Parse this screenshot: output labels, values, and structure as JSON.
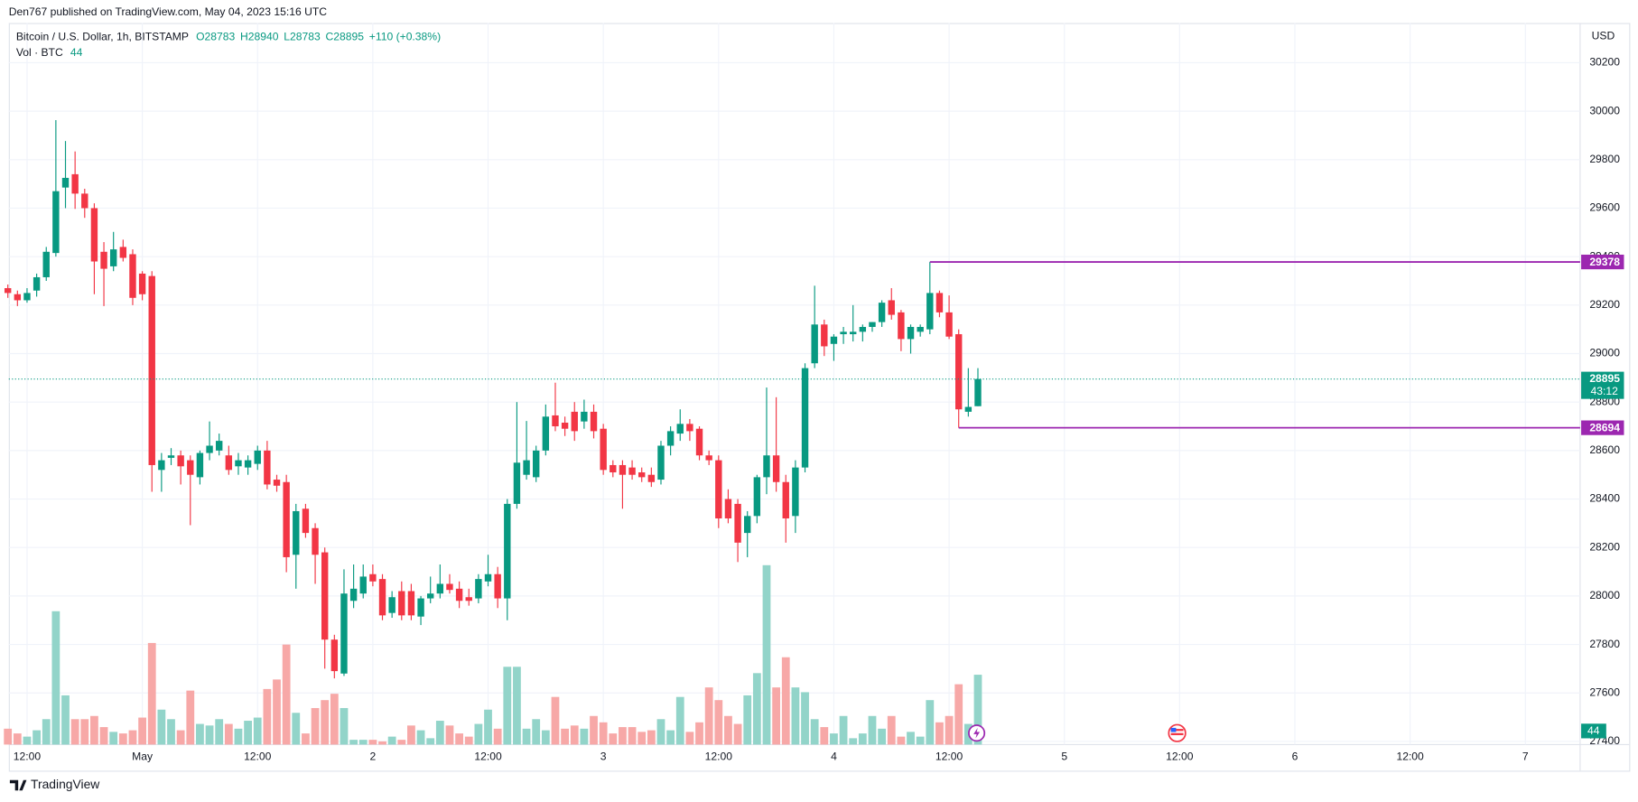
{
  "header": "Den767 published on TradingView.com, May 04, 2023 15:16 UTC",
  "footer": "TradingView",
  "chart_data": {
    "type": "candlestick",
    "symbol": "Bitcoin / U.S. Dollar, 1h, BITSTAMP",
    "ohlc_labels": [
      "O",
      "H",
      "L",
      "C"
    ],
    "change": "+110 (+0.38%)",
    "volume_label": "Vol · BTC",
    "currency": "USD",
    "countdown": "43:12",
    "up_color": "#089981",
    "down_color": "#f23645",
    "up_volume_color": "#92d4c9",
    "down_volume_color": "#f7a8a7",
    "level_color": "#9c27b0",
    "x": [
      -14,
      -13,
      -12,
      -11,
      -10,
      -9,
      -8,
      -7,
      -6,
      -5,
      -4,
      -3,
      -2,
      -1,
      0,
      1,
      2,
      3,
      4,
      5,
      6,
      7,
      8,
      9,
      10,
      11,
      12,
      13,
      14,
      15,
      16,
      17,
      18,
      19,
      20,
      21,
      22,
      23,
      24,
      25,
      26,
      27,
      28,
      29,
      30,
      31,
      32,
      33,
      34,
      35,
      36,
      37,
      38,
      39,
      40,
      41,
      42,
      43,
      44,
      45,
      46,
      47,
      48,
      49,
      50,
      51,
      52,
      53,
      54,
      55,
      56,
      57,
      58,
      59,
      60,
      61,
      62,
      63,
      64,
      65,
      66,
      67,
      68,
      69,
      70,
      71,
      72,
      73,
      74,
      75,
      76,
      77,
      78,
      79,
      80,
      81,
      82,
      83,
      84,
      85,
      86,
      87
    ],
    "open": [
      29270,
      29245,
      29220,
      29260,
      29315,
      29415,
      29685,
      29740,
      29660,
      29600,
      29420,
      29360,
      29440,
      29410,
      29330,
      29320,
      28520,
      28570,
      28580,
      28560,
      28490,
      28590,
      28600,
      28580,
      28535,
      28530,
      28545,
      28600,
      28480,
      28470,
      28170,
      28360,
      28280,
      28180,
      27820,
      27680,
      27980,
      28010,
      28090,
      28070,
      27930,
      28020,
      28020,
      27915,
      27990,
      28010,
      28050,
      28030,
      27995,
      27990,
      28060,
      28090,
      27990,
      28380,
      28500,
      28490,
      28600,
      28745,
      28715,
      28760,
      28720,
      28760,
      28690,
      28540,
      28540,
      28530,
      28510,
      28500,
      28480,
      28620,
      28670,
      28710,
      28690,
      28580,
      28560,
      28400,
      28380,
      28260,
      28330,
      28490,
      28580,
      28470,
      28330,
      28530,
      28960,
      29120,
      29040,
      29080,
      29080,
      29090,
      29110,
      29130,
      29220,
      29170,
      29060,
      29090,
      29100,
      29250,
      29170,
      29080,
      28760,
      28783
    ],
    "high": [
      29285,
      29260,
      29270,
      29330,
      29440,
      29963,
      29877,
      29834,
      29680,
      29620,
      29460,
      29502,
      29470,
      29430,
      29340,
      29340,
      28590,
      28610,
      28600,
      28580,
      28600,
      28720,
      28670,
      28620,
      28590,
      28580,
      28620,
      28640,
      28500,
      28500,
      28380,
      28380,
      28300,
      28200,
      27840,
      28110,
      28130,
      28130,
      28130,
      28090,
      28020,
      28060,
      28050,
      28000,
      28080,
      28130,
      28090,
      28060,
      28030,
      28090,
      28170,
      28120,
      28400,
      28800,
      28722,
      28620,
      28790,
      28880,
      28740,
      28800,
      28810,
      28790,
      28710,
      28560,
      28560,
      28560,
      28530,
      28530,
      28640,
      28700,
      28770,
      28730,
      28700,
      28600,
      28580,
      28440,
      28400,
      28350,
      28500,
      28860,
      28820,
      28500,
      28560,
      28960,
      29280,
      29140,
      29080,
      29110,
      29200,
      29120,
      29130,
      29220,
      29270,
      29180,
      29120,
      29120,
      29378,
      29260,
      29240,
      29100,
      28940,
      28940
    ],
    "low": [
      29230,
      29196,
      29210,
      29235,
      29300,
      29400,
      29600,
      29597,
      29560,
      29245,
      29196,
      29340,
      29380,
      29200,
      29220,
      28430,
      28430,
      28540,
      28460,
      28292,
      28460,
      28560,
      28580,
      28500,
      28500,
      28500,
      28520,
      28440,
      28430,
      28098,
      28030,
      28240,
      28050,
      27700,
      27660,
      27670,
      27950,
      27990,
      28040,
      27900,
      27910,
      27900,
      27900,
      27880,
      27970,
      27990,
      28010,
      27950,
      27960,
      27970,
      28040,
      27950,
      27900,
      28360,
      28480,
      28470,
      28580,
      28680,
      28660,
      28640,
      28690,
      28650,
      28500,
      28490,
      28360,
      28480,
      28470,
      28450,
      28460,
      28580,
      28640,
      28640,
      28560,
      28540,
      28280,
      28300,
      28140,
      28160,
      28300,
      28420,
      28430,
      28220,
      28260,
      28510,
      28940,
      28990,
      28970,
      29040,
      29050,
      29050,
      29090,
      29110,
      29140,
      29010,
      29000,
      29070,
      29080,
      29150,
      29060,
      28694,
      28740,
      28783
    ],
    "close": [
      29250,
      29220,
      29250,
      29315,
      29420,
      29670,
      29725,
      29660,
      29600,
      29380,
      29350,
      29430,
      29395,
      29230,
      29245,
      28540,
      28560,
      28580,
      28535,
      28500,
      28590,
      28620,
      28640,
      28520,
      28560,
      28560,
      28600,
      28460,
      28455,
      28160,
      28350,
      28260,
      28170,
      27820,
      27690,
      28010,
      28030,
      28080,
      28060,
      27920,
      27995,
      27920,
      27920,
      27990,
      28010,
      28050,
      28025,
      27980,
      27980,
      28070,
      28090,
      27990,
      28380,
      28550,
      28560,
      28600,
      28740,
      28700,
      28690,
      28680,
      28760,
      28680,
      28520,
      28510,
      28500,
      28500,
      28490,
      28470,
      28620,
      28680,
      28710,
      28680,
      28580,
      28560,
      28320,
      28320,
      28220,
      28330,
      28490,
      28580,
      28470,
      28320,
      28530,
      28940,
      29120,
      29030,
      29070,
      29090,
      29090,
      29110,
      29130,
      29210,
      29160,
      29060,
      29110,
      29110,
      29250,
      29170,
      29070,
      28770,
      28780,
      28895
    ],
    "volume": [
      10,
      7,
      5,
      9,
      16,
      84,
      31,
      16,
      16,
      18,
      11,
      8,
      7,
      9,
      17,
      64,
      22,
      16,
      9,
      34,
      13,
      12,
      16,
      13,
      10,
      15,
      17,
      35,
      41,
      63,
      20,
      7,
      23,
      28,
      32,
      23,
      3,
      3,
      3,
      2,
      5,
      3,
      12,
      9,
      4,
      15,
      12,
      7,
      5,
      13,
      22,
      10,
      49,
      49,
      10,
      16,
      9,
      30,
      10,
      12,
      10,
      18,
      14,
      7,
      11,
      11,
      8,
      9,
      16,
      9,
      30,
      8,
      14,
      36,
      28,
      18,
      13,
      31,
      45,
      113,
      36,
      55,
      36,
      33,
      16,
      11,
      7,
      18,
      4,
      7,
      18,
      10,
      18,
      5,
      8,
      5,
      28,
      14,
      18,
      38,
      13,
      44
    ],
    "levels": [
      {
        "value": 29378,
        "x": 82
      },
      {
        "value": 28694,
        "x": 85
      }
    ],
    "xlim": [
      -13.9,
      149.7
    ],
    "xticks": [
      {
        "value": -12,
        "label": "12:00"
      },
      {
        "value": 0,
        "label": "May"
      },
      {
        "value": 12,
        "label": "12:00"
      },
      {
        "value": 24,
        "label": "2"
      },
      {
        "value": 36,
        "label": "12:00"
      },
      {
        "value": 48,
        "label": "3"
      },
      {
        "value": 60,
        "label": "12:00"
      },
      {
        "value": 72,
        "label": "4"
      },
      {
        "value": 84,
        "label": "12:00"
      },
      {
        "value": 96,
        "label": "5"
      },
      {
        "value": 108,
        "label": "12:00"
      },
      {
        "value": 120,
        "label": "6"
      },
      {
        "value": 132,
        "label": "12:00"
      },
      {
        "value": 144,
        "label": "7"
      }
    ],
    "ylim": [
      27387,
      30364
    ],
    "yticks": [
      27400,
      27600,
      27800,
      28000,
      28200,
      28400,
      28600,
      28800,
      29000,
      29200,
      29400,
      29600,
      29800,
      30000,
      30200
    ],
    "grid": true
  }
}
